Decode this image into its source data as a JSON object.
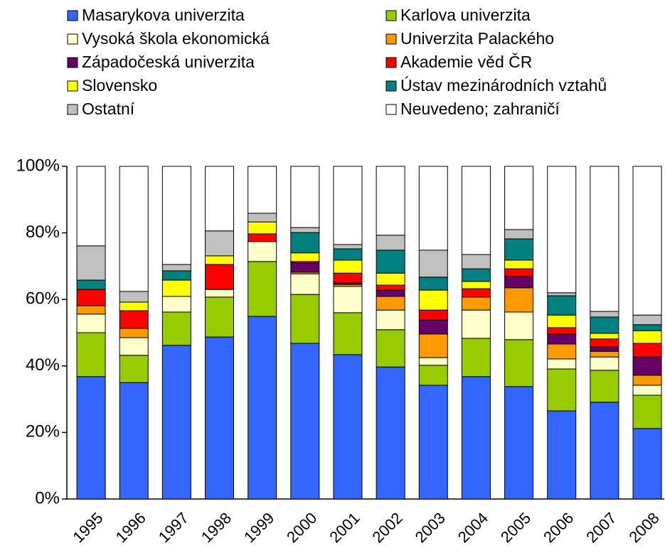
{
  "chart_data": {
    "type": "stacked_bar_percent",
    "categories": [
      "1995",
      "1996",
      "1997",
      "1998",
      "1999",
      "2000",
      "2001",
      "2002",
      "2003",
      "2004",
      "2005",
      "2006",
      "2007",
      "2008"
    ],
    "series": [
      {
        "name": "Masarykova univerzita",
        "color": "#3366ff",
        "values": [
          36.8,
          35.0,
          46.2,
          48.7,
          54.9,
          46.8,
          43.4,
          39.7,
          34.2,
          36.8,
          33.8,
          26.5,
          29.1,
          21.2
        ]
      },
      {
        "name": "Karlova univerzita",
        "color": "#99cc00",
        "values": [
          13.2,
          8.2,
          10.0,
          12.0,
          16.5,
          14.7,
          12.6,
          11.2,
          6.0,
          11.5,
          14.1,
          12.6,
          9.6,
          10.0
        ]
      },
      {
        "name": "Vysoká škola ekonomická",
        "color": "#ffffcc",
        "values": [
          5.6,
          5.3,
          4.7,
          2.3,
          6.0,
          6.2,
          7.9,
          5.9,
          2.3,
          8.5,
          8.3,
          3.0,
          4.0,
          3.0
        ]
      },
      {
        "name": "Univerzita Palackého",
        "color": "#ff9900",
        "values": [
          2.5,
          2.8,
          0,
          0,
          0,
          0.5,
          0.6,
          4.1,
          7.1,
          3.9,
          7.3,
          4.5,
          1.7,
          3.0
        ]
      },
      {
        "name": "Západočeská univerzita",
        "color": "#660066",
        "values": [
          0,
          0,
          0,
          0,
          0,
          2.8,
          0.5,
          1.9,
          4.2,
          0,
          3.4,
          3.0,
          1.3,
          5.5
        ]
      },
      {
        "name": "Akademie věd ČR",
        "color": "#ff0000",
        "values": [
          4.9,
          5.3,
          0,
          7.5,
          2.3,
          0.4,
          2.9,
          1.5,
          3.0,
          2.5,
          2.3,
          1.9,
          2.4,
          4.1
        ]
      },
      {
        "name": "Slovensko",
        "color": "#ffff00",
        "values": [
          0,
          2.6,
          4.9,
          2.6,
          3.6,
          2.6,
          3.9,
          3.6,
          6.0,
          2.2,
          2.6,
          3.8,
          1.7,
          3.8
        ]
      },
      {
        "name": "Ústav mezinárodních vztahů",
        "color": "#008080",
        "values": [
          2.8,
          0,
          2.8,
          0,
          0,
          6.1,
          3.4,
          6.9,
          3.9,
          3.8,
          6.4,
          5.8,
          4.9,
          1.8
        ]
      },
      {
        "name": "Ostatní",
        "color": "#c0c0c0",
        "values": [
          10.3,
          3.2,
          1.9,
          7.5,
          2.6,
          1.5,
          1.3,
          4.5,
          8.1,
          4.3,
          2.8,
          0.9,
          1.7,
          2.9
        ]
      },
      {
        "name": "Neuvedeno; zahraničí",
        "color": "#ffffff",
        "values": [
          23.9,
          37.6,
          29.5,
          19.4,
          14.1,
          18.4,
          23.5,
          20.7,
          25.2,
          26.5,
          19.0,
          38.0,
          43.6,
          44.7
        ]
      }
    ],
    "ylim": [
      0,
      100
    ],
    "yticks": [
      {
        "value": 0,
        "label": "0%"
      },
      {
        "value": 20,
        "label": "20%"
      },
      {
        "value": 40,
        "label": "40%"
      },
      {
        "value": 60,
        "label": "60%"
      },
      {
        "value": 80,
        "label": "80%"
      },
      {
        "value": 100,
        "label": "100%"
      }
    ],
    "legend": "top"
  }
}
